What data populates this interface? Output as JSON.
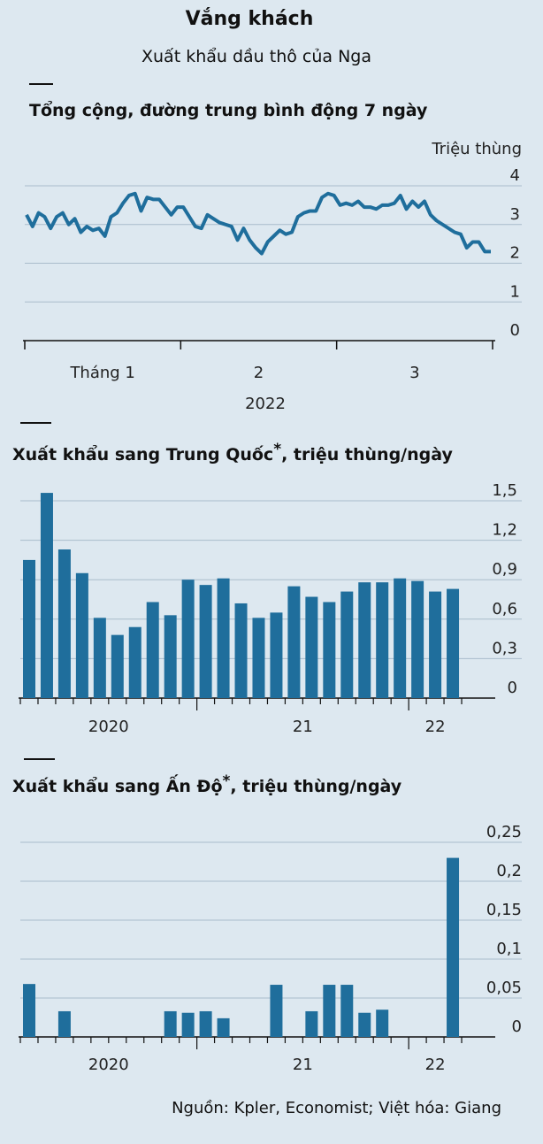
{
  "header": {
    "title": "Vắng khách",
    "subtitle": "Xuất khẩu dầu thô của Nga"
  },
  "chart_data": [
    {
      "type": "line",
      "title": "Tổng cộng, đường trung bình động 7 ngày",
      "y_label": "Triệu thùng",
      "x_labels": [
        "Tháng 1",
        "2",
        "3"
      ],
      "x_year": "2022",
      "color": "#1f6e9c",
      "values": [
        3.25,
        2.95,
        3.3,
        3.2,
        2.9,
        3.2,
        3.3,
        3.0,
        3.15,
        2.8,
        2.95,
        2.85,
        2.9,
        2.7,
        3.2,
        3.3,
        3.55,
        3.75,
        3.8,
        3.35,
        3.7,
        3.65,
        3.65,
        3.45,
        3.25,
        3.45,
        3.45,
        3.2,
        2.95,
        2.9,
        3.25,
        3.15,
        3.05,
        3.0,
        2.95,
        2.6,
        2.9,
        2.6,
        2.4,
        2.25,
        2.55,
        2.7,
        2.85,
        2.75,
        2.8,
        3.2,
        3.3,
        3.35,
        3.35,
        3.7,
        3.8,
        3.75,
        3.5,
        3.55,
        3.5,
        3.6,
        3.45,
        3.45,
        3.4,
        3.5,
        3.5,
        3.55,
        3.75,
        3.4,
        3.6,
        3.45,
        3.6,
        3.25,
        3.1,
        3.0,
        2.9,
        2.8,
        2.75,
        2.4,
        2.55,
        2.55,
        2.3,
        2.3
      ],
      "ylim": [
        0,
        4
      ],
      "yticks": [
        0,
        1,
        2,
        3,
        4
      ],
      "grid": true
    },
    {
      "type": "bar",
      "title": "Xuất khẩu sang Trung Quốc",
      "title_note": "*",
      "title_suffix": ", triệu thùng/ngày",
      "color": "#1f6e9c",
      "categories": [
        "2020",
        null,
        null,
        null,
        null,
        null,
        null,
        null,
        null,
        null,
        "21",
        null,
        null,
        null,
        null,
        null,
        null,
        null,
        null,
        null,
        null,
        null,
        "22",
        null,
        null
      ],
      "values": [
        1.05,
        1.56,
        1.13,
        0.95,
        0.61,
        0.48,
        0.54,
        0.73,
        0.63,
        0.9,
        0.86,
        0.91,
        0.72,
        0.61,
        0.65,
        0.85,
        0.77,
        0.73,
        0.81,
        0.88,
        0.88,
        0.91,
        0.89,
        0.81,
        0.83
      ],
      "ylim": [
        0,
        1.5
      ],
      "yticks": [
        0,
        {
          "value": 0.3,
          "label": "0,3"
        },
        {
          "value": 0.6,
          "label": "0,6"
        },
        {
          "value": 0.9,
          "label": "0,9"
        },
        {
          "value": 1.2,
          "label": "1,2"
        },
        {
          "value": 1.5,
          "label": "1,5"
        }
      ],
      "grid": true
    },
    {
      "type": "bar",
      "title": "Xuất khẩu sang Ấn Độ",
      "title_note": "*",
      "title_suffix": ", triệu thùng/ngày",
      "color": "#1f6e9c",
      "categories": [
        "2020",
        null,
        null,
        null,
        null,
        null,
        null,
        null,
        null,
        null,
        "21",
        null,
        null,
        null,
        null,
        null,
        null,
        null,
        null,
        null,
        null,
        null,
        "22",
        null,
        null
      ],
      "values": [
        0.068,
        0,
        0.033,
        0,
        0,
        0,
        0,
        0,
        0.033,
        0.031,
        0.033,
        0.024,
        0,
        0,
        0.067,
        0,
        0.033,
        0.067,
        0.067,
        0.031,
        0.035,
        0,
        0,
        0,
        0.23
      ],
      "ylim": [
        0,
        0.25
      ],
      "yticks": [
        0,
        {
          "value": 0.05,
          "label": "0,05"
        },
        {
          "value": 0.1,
          "label": "0,1"
        },
        {
          "value": 0.15,
          "label": "0,15"
        },
        {
          "value": 0.2,
          "label": "0,2"
        },
        {
          "value": 0.25,
          "label": "0,25"
        }
      ],
      "grid": true
    }
  ],
  "source": "Nguồn: Kpler, Economist; Việt hóa: Giang"
}
